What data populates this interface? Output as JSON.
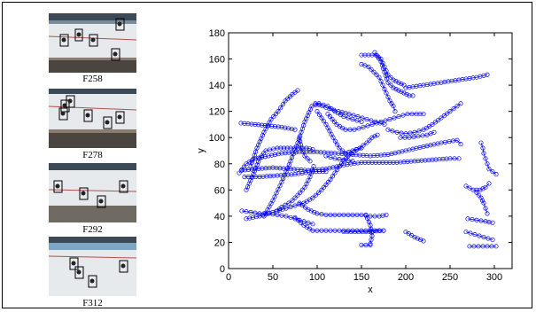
{
  "figure": {
    "frames": [
      {
        "label": "F258"
      },
      {
        "label": "F278"
      },
      {
        "label": "F292"
      },
      {
        "label": "F312"
      }
    ]
  },
  "chart_data": {
    "type": "scatter",
    "title": "",
    "xlabel": "x",
    "ylabel": "y",
    "xlim": [
      0,
      320
    ],
    "ylim": [
      0,
      180
    ],
    "xticks": [
      0,
      50,
      100,
      150,
      200,
      250,
      300
    ],
    "yticks": [
      0,
      20,
      40,
      60,
      80,
      100,
      120,
      140,
      160,
      180
    ],
    "marker_color": "#0000ff",
    "marker": "circle-open",
    "series": [
      {
        "values": [
          [
            12,
            73
          ],
          [
            20,
            80
          ],
          [
            30,
            84
          ],
          [
            45,
            86
          ],
          [
            60,
            88
          ],
          [
            80,
            89
          ],
          [
            100,
            89
          ],
          [
            120,
            88
          ],
          [
            140,
            87
          ],
          [
            160,
            86
          ],
          [
            180,
            87
          ],
          [
            200,
            90
          ],
          [
            220,
            93
          ],
          [
            240,
            96
          ],
          [
            258,
            98
          ],
          [
            262,
            95
          ]
        ]
      },
      {
        "values": [
          [
            15,
            75
          ],
          [
            30,
            76
          ],
          [
            50,
            77
          ],
          [
            70,
            76
          ],
          [
            90,
            75
          ],
          [
            110,
            76
          ],
          [
            130,
            79
          ],
          [
            150,
            81
          ],
          [
            170,
            81
          ],
          [
            190,
            81
          ],
          [
            210,
            82
          ],
          [
            230,
            83
          ],
          [
            250,
            84
          ],
          [
            260,
            84
          ]
        ]
      },
      {
        "values": [
          [
            18,
            70
          ],
          [
            35,
            70
          ],
          [
            55,
            71
          ],
          [
            75,
            72
          ],
          [
            95,
            74
          ],
          [
            110,
            74
          ]
        ]
      },
      {
        "values": [
          [
            20,
            60
          ],
          [
            28,
            72
          ],
          [
            35,
            84
          ],
          [
            42,
            90
          ],
          [
            55,
            92
          ],
          [
            70,
            92
          ],
          [
            88,
            92
          ],
          [
            95,
            91
          ]
        ]
      },
      {
        "values": [
          [
            15,
            44
          ],
          [
            25,
            43
          ],
          [
            35,
            42
          ],
          [
            45,
            42
          ],
          [
            55,
            41
          ],
          [
            65,
            40
          ],
          [
            75,
            38
          ],
          [
            85,
            36
          ],
          [
            95,
            34
          ]
        ]
      },
      {
        "values": [
          [
            20,
            38
          ],
          [
            35,
            40
          ],
          [
            50,
            43
          ],
          [
            65,
            46
          ],
          [
            75,
            48
          ],
          [
            85,
            50
          ],
          [
            95,
            54
          ],
          [
            105,
            60
          ],
          [
            115,
            68
          ],
          [
            125,
            78
          ],
          [
            135,
            86
          ],
          [
            145,
            91
          ],
          [
            150,
            92
          ]
        ]
      },
      {
        "values": [
          [
            80,
            50
          ],
          [
            90,
            45
          ],
          [
            100,
            42
          ],
          [
            110,
            41
          ],
          [
            120,
            41
          ],
          [
            130,
            41
          ],
          [
            140,
            41
          ],
          [
            150,
            41
          ],
          [
            160,
            40
          ],
          [
            170,
            40
          ],
          [
            178,
            41
          ]
        ]
      },
      {
        "values": [
          [
            75,
            39
          ],
          [
            85,
            33
          ],
          [
            95,
            29
          ],
          [
            105,
            29
          ],
          [
            115,
            29
          ],
          [
            125,
            29
          ],
          [
            135,
            29
          ],
          [
            145,
            29
          ],
          [
            155,
            29
          ],
          [
            165,
            29
          ],
          [
            175,
            29
          ]
        ]
      },
      {
        "values": [
          [
            40,
            40
          ],
          [
            50,
            52
          ],
          [
            60,
            66
          ],
          [
            70,
            82
          ],
          [
            78,
            96
          ],
          [
            86,
            112
          ],
          [
            94,
            124
          ],
          [
            102,
            126
          ],
          [
            112,
            124
          ],
          [
            120,
            120
          ],
          [
            130,
            116
          ],
          [
            140,
            114
          ],
          [
            150,
            112
          ]
        ]
      },
      {
        "values": [
          [
            25,
            78
          ],
          [
            32,
            92
          ],
          [
            40,
            104
          ],
          [
            48,
            114
          ],
          [
            56,
            120
          ],
          [
            64,
            128
          ],
          [
            72,
            133
          ],
          [
            78,
            136
          ]
        ]
      },
      {
        "values": [
          [
            98,
            126
          ],
          [
            106,
            124
          ],
          [
            114,
            122
          ],
          [
            124,
            120
          ],
          [
            136,
            118
          ],
          [
            146,
            116
          ],
          [
            156,
            114
          ],
          [
            166,
            112
          ],
          [
            176,
            110
          ]
        ]
      },
      {
        "values": [
          [
            100,
            120
          ],
          [
            110,
            110
          ],
          [
            118,
            100
          ],
          [
            125,
            92
          ],
          [
            132,
            88
          ],
          [
            140,
            90
          ],
          [
            148,
            92
          ],
          [
            156,
            96
          ],
          [
            162,
            100
          ],
          [
            168,
            102
          ]
        ]
      },
      {
        "values": [
          [
            112,
            118
          ],
          [
            122,
            110
          ],
          [
            132,
            106
          ],
          [
            142,
            106
          ],
          [
            152,
            108
          ],
          [
            162,
            110
          ],
          [
            172,
            112
          ],
          [
            182,
            114
          ],
          [
            192,
            116
          ],
          [
            202,
            118
          ],
          [
            212,
            118
          ],
          [
            220,
            118
          ]
        ]
      },
      {
        "values": [
          [
            150,
            163
          ],
          [
            158,
            163
          ],
          [
            166,
            163
          ],
          [
            172,
            160
          ],
          [
            176,
            154
          ],
          [
            180,
            148
          ],
          [
            186,
            144
          ],
          [
            192,
            142
          ],
          [
            198,
            140
          ]
        ]
      },
      {
        "values": [
          [
            150,
            156
          ],
          [
            158,
            154
          ],
          [
            164,
            150
          ],
          [
            170,
            146
          ],
          [
            174,
            140
          ],
          [
            178,
            134
          ],
          [
            182,
            128
          ],
          [
            186,
            124
          ],
          [
            188,
            120
          ]
        ]
      },
      {
        "values": [
          [
            165,
            165
          ],
          [
            172,
            158
          ],
          [
            176,
            150
          ],
          [
            180,
            142
          ],
          [
            186,
            138
          ],
          [
            192,
            136
          ],
          [
            198,
            134
          ],
          [
            204,
            132
          ],
          [
            208,
            132
          ]
        ]
      },
      {
        "values": [
          [
            200,
            138
          ],
          [
            220,
            140
          ],
          [
            240,
            142
          ],
          [
            260,
            144
          ],
          [
            280,
            146
          ],
          [
            292,
            148
          ]
        ]
      },
      {
        "values": [
          [
            180,
            106
          ],
          [
            190,
            104
          ],
          [
            200,
            103
          ],
          [
            210,
            104
          ],
          [
            220,
            106
          ],
          [
            230,
            110
          ],
          [
            240,
            115
          ],
          [
            250,
            120
          ],
          [
            258,
            124
          ],
          [
            262,
            126
          ]
        ]
      },
      {
        "values": [
          [
            194,
            100
          ],
          [
            204,
            100
          ],
          [
            214,
            101
          ],
          [
            224,
            102
          ],
          [
            232,
            104
          ]
        ]
      },
      {
        "values": [
          [
            268,
            63
          ],
          [
            276,
            60
          ],
          [
            284,
            60
          ],
          [
            290,
            62
          ],
          [
            294,
            65
          ]
        ]
      },
      {
        "values": [
          [
            285,
            96
          ],
          [
            287,
            92
          ],
          [
            288,
            88
          ],
          [
            290,
            84
          ],
          [
            292,
            80
          ],
          [
            294,
            76
          ],
          [
            298,
            74
          ],
          [
            302,
            72
          ]
        ]
      },
      {
        "values": [
          [
            280,
            58
          ],
          [
            285,
            54
          ],
          [
            288,
            50
          ],
          [
            290,
            46
          ],
          [
            292,
            42
          ]
        ]
      },
      {
        "values": [
          [
            14,
            111
          ],
          [
            30,
            110
          ],
          [
            45,
            109
          ],
          [
            60,
            108
          ],
          [
            75,
            106
          ]
        ]
      },
      {
        "values": [
          [
            80,
            100
          ],
          [
            82,
            92
          ],
          [
            86,
            86
          ],
          [
            92,
            82
          ]
        ]
      },
      {
        "values": [
          [
            155,
            41
          ],
          [
            160,
            33
          ],
          [
            162,
            25
          ],
          [
            160,
            19
          ]
        ]
      },
      {
        "values": [
          [
            130,
            28
          ],
          [
            155,
            28
          ],
          [
            175,
            29
          ]
        ]
      },
      {
        "values": [
          [
            200,
            28
          ],
          [
            210,
            24
          ],
          [
            220,
            21
          ]
        ]
      },
      {
        "values": [
          [
            268,
            28
          ],
          [
            278,
            26
          ],
          [
            288,
            24
          ],
          [
            298,
            22
          ]
        ]
      },
      {
        "values": [
          [
            270,
            38
          ],
          [
            280,
            37
          ],
          [
            290,
            36
          ],
          [
            298,
            35
          ]
        ]
      },
      {
        "values": [
          [
            272,
            17
          ],
          [
            282,
            17
          ],
          [
            292,
            17
          ],
          [
            302,
            17
          ]
        ]
      },
      {
        "values": [
          [
            150,
            18
          ],
          [
            155,
            18
          ],
          [
            160,
            18
          ]
        ]
      },
      {
        "values": [
          [
            110,
            86
          ],
          [
            120,
            84
          ],
          [
            130,
            83
          ],
          [
            140,
            82
          ]
        ]
      },
      {
        "values": [
          [
            55,
            44
          ],
          [
            60,
            47
          ],
          [
            68,
            50
          ],
          [
            72,
            52
          ],
          [
            78,
            56
          ],
          [
            86,
            62
          ],
          [
            92,
            70
          ],
          [
            96,
            78
          ]
        ]
      }
    ]
  }
}
